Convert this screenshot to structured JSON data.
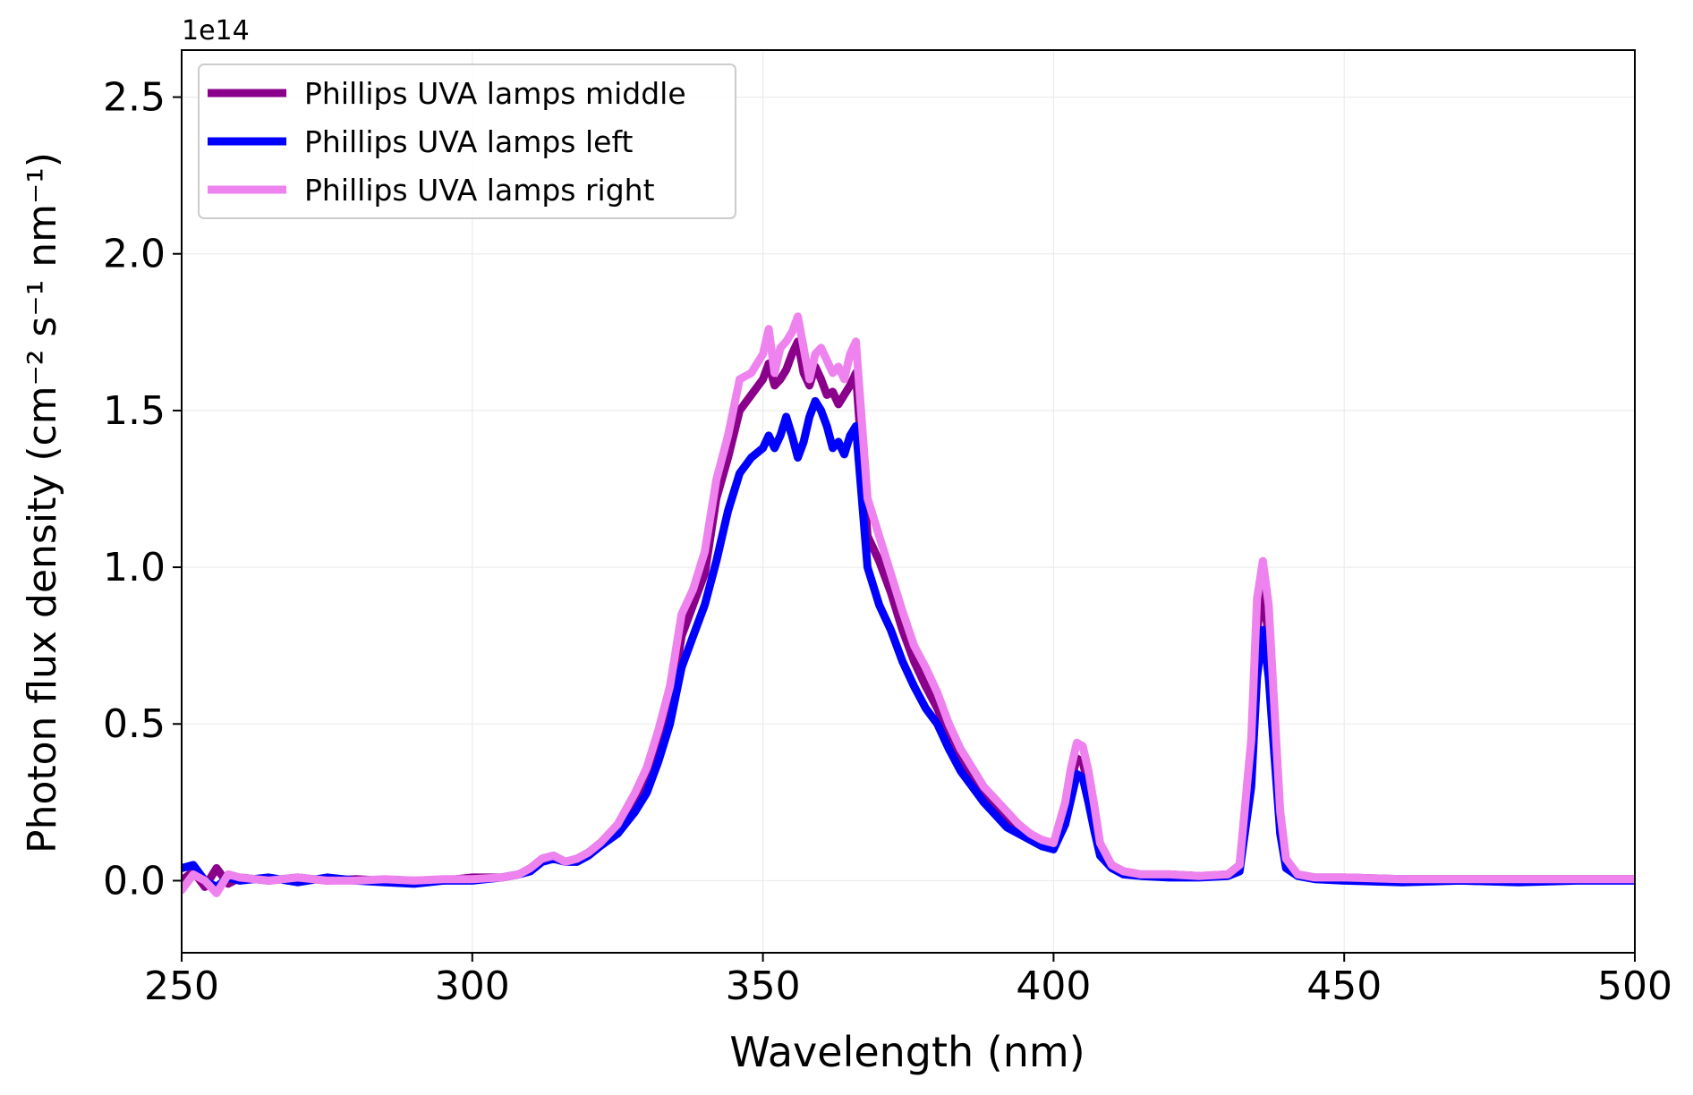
{
  "chart_data": {
    "type": "line",
    "title": "",
    "xlabel": "Wavelength (nm)",
    "ylabel": "Photon flux density (cm⁻² s⁻¹ nm⁻¹)",
    "offset_label": "1e14",
    "xlim": [
      250,
      500
    ],
    "ylim": [
      -0.23,
      2.65
    ],
    "xticks": [
      250,
      300,
      350,
      400,
      450,
      500
    ],
    "xtick_labels": [
      "250",
      "300",
      "350",
      "400",
      "450",
      "500"
    ],
    "yticks": [
      0.0,
      0.5,
      1.0,
      1.5,
      2.0,
      2.5
    ],
    "ytick_labels": [
      "0.0",
      "0.5",
      "1.0",
      "1.5",
      "2.0",
      "2.5"
    ],
    "grid": true,
    "legend_position": "top-left",
    "series": [
      {
        "name": "Phillips UVA lamps middle",
        "color": "#8B008B",
        "x": [
          250,
          252,
          254,
          256,
          258,
          260,
          265,
          270,
          275,
          280,
          285,
          290,
          295,
          300,
          305,
          308,
          310,
          312,
          314,
          316,
          318,
          320,
          322,
          325,
          328,
          330,
          332,
          334,
          336,
          338,
          340,
          342,
          344,
          346,
          348,
          350,
          351,
          352,
          353,
          354,
          355,
          356,
          357,
          358,
          359,
          360,
          361,
          362,
          363,
          364,
          365,
          366,
          368,
          370,
          372,
          374,
          376,
          378,
          380,
          382,
          384,
          386,
          388,
          390,
          392,
          394,
          396,
          398,
          400,
          402,
          403,
          404,
          405,
          406,
          407,
          408,
          410,
          412,
          415,
          420,
          425,
          430,
          432,
          434,
          435,
          436,
          437,
          438,
          439,
          440,
          442,
          445,
          450,
          460,
          470,
          480,
          490,
          500
        ],
        "y": [
          0.0,
          0.03,
          -0.02,
          0.04,
          -0.01,
          0.01,
          0.0,
          0.01,
          0.0,
          0.005,
          0.0,
          0.0,
          0.0,
          0.01,
          0.01,
          0.02,
          0.04,
          0.07,
          0.08,
          0.06,
          0.07,
          0.09,
          0.12,
          0.17,
          0.26,
          0.33,
          0.43,
          0.55,
          0.78,
          0.88,
          0.98,
          1.22,
          1.35,
          1.5,
          1.55,
          1.6,
          1.65,
          1.58,
          1.6,
          1.63,
          1.68,
          1.72,
          1.62,
          1.58,
          1.64,
          1.6,
          1.55,
          1.56,
          1.52,
          1.55,
          1.58,
          1.62,
          1.1,
          1.02,
          0.92,
          0.8,
          0.7,
          0.62,
          0.55,
          0.46,
          0.38,
          0.32,
          0.28,
          0.24,
          0.2,
          0.17,
          0.15,
          0.12,
          0.12,
          0.22,
          0.32,
          0.39,
          0.38,
          0.3,
          0.2,
          0.1,
          0.05,
          0.03,
          0.02,
          0.02,
          0.015,
          0.02,
          0.05,
          0.4,
          0.8,
          0.92,
          0.78,
          0.5,
          0.2,
          0.06,
          0.02,
          0.01,
          0.01,
          0.005,
          0.005,
          0.005,
          0.005,
          0.005
        ]
      },
      {
        "name": "Phillips UVA lamps left",
        "color": "#0000FF",
        "x": [
          250,
          252,
          254,
          256,
          258,
          260,
          265,
          270,
          275,
          280,
          285,
          290,
          295,
          300,
          305,
          308,
          310,
          312,
          314,
          316,
          318,
          320,
          322,
          325,
          328,
          330,
          332,
          334,
          336,
          338,
          340,
          342,
          344,
          346,
          348,
          350,
          351,
          352,
          353,
          354,
          355,
          356,
          357,
          358,
          359,
          360,
          361,
          362,
          363,
          364,
          365,
          366,
          368,
          370,
          372,
          374,
          376,
          378,
          380,
          382,
          384,
          386,
          388,
          390,
          392,
          394,
          396,
          398,
          400,
          402,
          403,
          404,
          405,
          406,
          407,
          408,
          410,
          412,
          415,
          420,
          425,
          430,
          432,
          434,
          435,
          436,
          437,
          438,
          439,
          440,
          442,
          445,
          450,
          460,
          470,
          480,
          490,
          500
        ],
        "y": [
          0.04,
          0.05,
          0.0,
          -0.02,
          0.01,
          0.0,
          0.01,
          -0.005,
          0.01,
          0.0,
          -0.005,
          -0.01,
          0.0,
          0.0,
          0.01,
          0.02,
          0.03,
          0.06,
          0.07,
          0.06,
          0.06,
          0.08,
          0.11,
          0.15,
          0.22,
          0.28,
          0.38,
          0.5,
          0.68,
          0.78,
          0.88,
          1.02,
          1.18,
          1.3,
          1.35,
          1.38,
          1.42,
          1.38,
          1.42,
          1.48,
          1.42,
          1.35,
          1.4,
          1.48,
          1.53,
          1.5,
          1.45,
          1.38,
          1.4,
          1.36,
          1.42,
          1.45,
          1.0,
          0.88,
          0.8,
          0.7,
          0.62,
          0.55,
          0.5,
          0.42,
          0.35,
          0.3,
          0.25,
          0.21,
          0.17,
          0.15,
          0.13,
          0.11,
          0.1,
          0.18,
          0.26,
          0.34,
          0.33,
          0.25,
          0.16,
          0.08,
          0.04,
          0.02,
          0.015,
          0.01,
          0.01,
          0.015,
          0.03,
          0.3,
          0.65,
          0.8,
          0.65,
          0.4,
          0.15,
          0.04,
          0.015,
          0.005,
          0.0,
          -0.005,
          0.0,
          -0.005,
          0.0,
          0.0
        ]
      },
      {
        "name": "Phillips UVA lamps right",
        "color": "#EE82EE",
        "x": [
          250,
          252,
          254,
          256,
          258,
          260,
          265,
          270,
          275,
          280,
          285,
          290,
          295,
          300,
          305,
          308,
          310,
          312,
          314,
          316,
          318,
          320,
          322,
          325,
          328,
          330,
          332,
          334,
          336,
          338,
          340,
          342,
          344,
          346,
          348,
          350,
          351,
          352,
          353,
          354,
          355,
          356,
          357,
          358,
          359,
          360,
          361,
          362,
          363,
          364,
          365,
          366,
          368,
          370,
          372,
          374,
          376,
          378,
          380,
          382,
          384,
          386,
          388,
          390,
          392,
          394,
          396,
          398,
          400,
          402,
          403,
          404,
          405,
          406,
          407,
          408,
          410,
          412,
          415,
          420,
          425,
          430,
          432,
          434,
          435,
          436,
          437,
          438,
          439,
          440,
          442,
          445,
          450,
          460,
          470,
          480,
          490,
          500
        ],
        "y": [
          -0.03,
          0.02,
          0.0,
          -0.04,
          0.02,
          0.01,
          0.0,
          0.01,
          0.0,
          0.0,
          0.005,
          0.0,
          0.005,
          0.005,
          0.01,
          0.02,
          0.04,
          0.07,
          0.08,
          0.06,
          0.07,
          0.09,
          0.12,
          0.18,
          0.28,
          0.36,
          0.48,
          0.62,
          0.85,
          0.93,
          1.05,
          1.28,
          1.42,
          1.6,
          1.62,
          1.68,
          1.76,
          1.62,
          1.7,
          1.72,
          1.75,
          1.8,
          1.7,
          1.6,
          1.68,
          1.7,
          1.66,
          1.62,
          1.64,
          1.6,
          1.68,
          1.72,
          1.22,
          1.1,
          0.98,
          0.86,
          0.75,
          0.68,
          0.6,
          0.5,
          0.42,
          0.36,
          0.3,
          0.26,
          0.22,
          0.18,
          0.15,
          0.13,
          0.12,
          0.25,
          0.36,
          0.44,
          0.43,
          0.35,
          0.24,
          0.12,
          0.05,
          0.03,
          0.02,
          0.02,
          0.015,
          0.02,
          0.05,
          0.45,
          0.9,
          1.02,
          0.88,
          0.55,
          0.22,
          0.07,
          0.02,
          0.01,
          0.01,
          0.005,
          0.005,
          0.005,
          0.005,
          0.005
        ]
      }
    ]
  }
}
